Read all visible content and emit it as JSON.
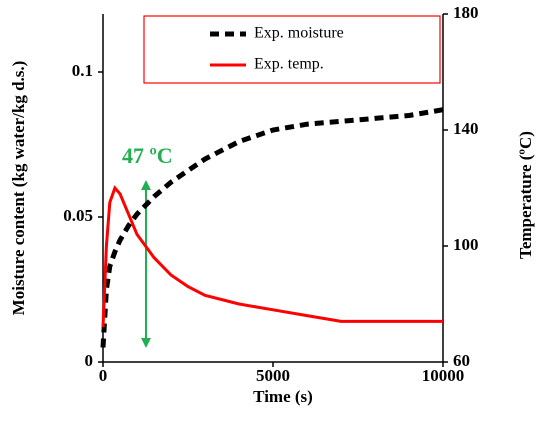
{
  "chart_data": {
    "type": "line",
    "x_label": "Time (s)",
    "y_label": "Moisture content (kg water/kg d.s.)",
    "y2_label": "Temperature (ºC)",
    "annotation": "47 ºC",
    "x": [
      0,
      100,
      200,
      350,
      500,
      750,
      1000,
      1500,
      2000,
      2500,
      3000,
      4000,
      5000,
      6000,
      7000,
      8000,
      9000,
      10000
    ],
    "series": [
      {
        "name": "Exp. moisture",
        "color": "#000000",
        "dashed": true,
        "values": [
          0.005,
          0.025,
          0.033,
          0.038,
          0.042,
          0.047,
          0.051,
          0.057,
          0.062,
          0.066,
          0.07,
          0.076,
          0.08,
          0.082,
          0.083,
          0.084,
          0.085,
          0.087
        ]
      },
      {
        "name": "Exp. temp.",
        "color": "#ff0000",
        "axis": "y2",
        "values": [
          72,
          100,
          115,
          120,
          118,
          111,
          104,
          96,
          90,
          86,
          83,
          80,
          78,
          76,
          74,
          74,
          74,
          74
        ]
      }
    ],
    "xlim": [
      0,
      10000
    ],
    "xticks": [
      0,
      5000,
      10000
    ],
    "ylim": [
      0,
      0.12
    ],
    "yticks": [
      0,
      0.05,
      0.1
    ],
    "y2lim": [
      60,
      180
    ],
    "y2ticks": [
      60,
      100,
      140,
      180
    ]
  }
}
